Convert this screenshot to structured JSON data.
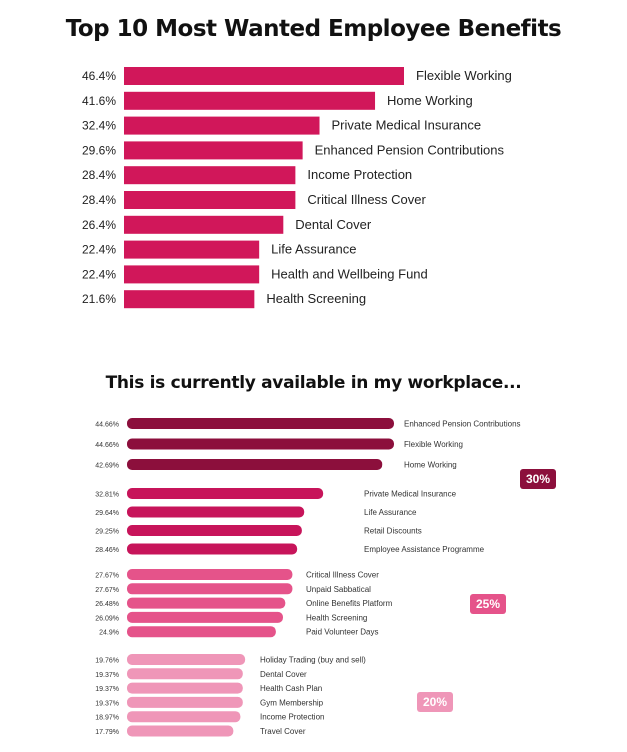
{
  "chart_data": [
    {
      "type": "bar",
      "orientation": "horizontal",
      "title": "Top 10 Most Wanted Employee Benefits",
      "color": "#d1175a",
      "categories": [
        "Flexible Working",
        "Home Working",
        "Private Medical Insurance",
        "Enhanced Pension Contributions",
        "Income Protection",
        "Critical Illness Cover",
        "Dental Cover",
        "Life Assurance",
        "Health and Wellbeing Fund",
        "Health Screening"
      ],
      "values": [
        46.4,
        41.6,
        32.4,
        29.6,
        28.4,
        28.4,
        26.4,
        22.4,
        22.4,
        21.6
      ],
      "value_labels": [
        "46.4%",
        "41.6%",
        "32.4%",
        "29.6%",
        "28.4%",
        "28.4%",
        "26.4%",
        "22.4%",
        "22.4%",
        "21.6%"
      ]
    },
    {
      "type": "bar",
      "orientation": "horizontal",
      "title": "This is currently available in my workplace...",
      "groups": [
        {
          "badge": "30%",
          "color": "#8c0f3c",
          "categories": [
            "Enhanced Pension Contributions",
            "Flexible Working",
            "Home Working"
          ],
          "values": [
            44.66,
            44.66,
            42.69
          ],
          "value_labels": [
            "44.66%",
            "44.66%",
            "42.69%"
          ]
        },
        {
          "badge": "",
          "color": "#c7145a",
          "categories": [
            "Private Medical Insurance",
            "Life Assurance",
            "Retail Discounts",
            "Employee Assistance Programme"
          ],
          "values": [
            32.81,
            29.64,
            29.25,
            28.46
          ],
          "value_labels": [
            "32.81%",
            "29.64%",
            "29.25%",
            "28.46%"
          ]
        },
        {
          "badge": "25%",
          "color": "#e5538a",
          "categories": [
            "Critical Illness Cover",
            "Unpaid Sabbatical",
            "Online Benefits Platform",
            "Health Screening",
            "Paid Volunteer Days"
          ],
          "values": [
            27.67,
            27.67,
            26.48,
            26.09,
            24.9
          ],
          "value_labels": [
            "27.67%",
            "27.67%",
            "26.48%",
            "26.09%",
            "24.9%"
          ]
        },
        {
          "badge": "20%",
          "color": "#ef96b8",
          "categories": [
            "Holiday Trading (buy and sell)",
            "Dental Cover",
            "Health Cash Plan",
            "Gym Membership",
            "Income Protection",
            "Travel Cover"
          ],
          "values": [
            19.76,
            19.37,
            19.37,
            19.37,
            18.97,
            17.79
          ],
          "value_labels": [
            "19.76%",
            "19.37%",
            "19.37%",
            "19.37%",
            "18.97%",
            "17.79%"
          ]
        }
      ]
    }
  ]
}
